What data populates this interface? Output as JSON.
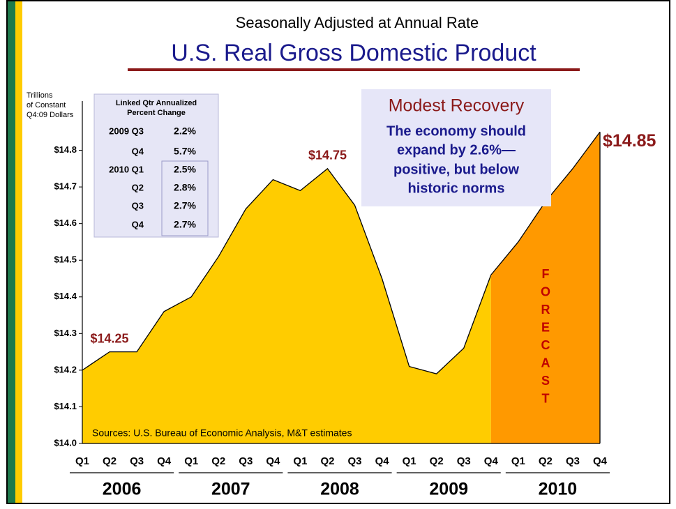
{
  "chart_data": {
    "type": "area",
    "subtitle": "Seasonally Adjusted at Annual Rate",
    "title": "U.S. Real Gross Domestic Product",
    "y_label": [
      "Trillions",
      "of Constant",
      "Q4:09 Dollars"
    ],
    "categories": [
      "Q1",
      "Q2",
      "Q3",
      "Q4",
      "Q1",
      "Q2",
      "Q3",
      "Q4",
      "Q1",
      "Q2",
      "Q3",
      "Q4",
      "Q1",
      "Q2",
      "Q3",
      "Q4",
      "Q1",
      "Q2",
      "Q3",
      "Q4"
    ],
    "years": [
      "2006",
      "2007",
      "2008",
      "2009",
      "2010"
    ],
    "series": [
      {
        "color": "#FFCC00",
        "values": [
          14.2,
          14.25,
          14.25,
          14.36,
          14.4,
          14.51,
          14.64,
          14.72,
          14.69,
          14.75,
          14.65,
          14.45,
          14.21,
          14.19,
          14.26,
          14.46,
          null,
          null,
          null,
          null
        ],
        "value_labels": [
          null,
          "$14.25",
          null,
          null,
          null,
          null,
          null,
          null,
          null,
          "$14.75",
          null,
          null,
          null,
          null,
          null,
          null,
          null,
          null,
          null,
          null
        ]
      },
      {
        "color": "#FF9900",
        "values": [
          null,
          null,
          null,
          null,
          null,
          null,
          null,
          null,
          null,
          null,
          null,
          null,
          null,
          null,
          null,
          14.46,
          14.55,
          14.66,
          14.75,
          14.85
        ],
        "value_labels": [
          null,
          null,
          null,
          null,
          null,
          null,
          null,
          null,
          null,
          null,
          null,
          null,
          null,
          null,
          null,
          null,
          null,
          null,
          null,
          "$14.85"
        ]
      }
    ],
    "ylim": [
      14.0,
      14.9
    ],
    "yticks": [
      {
        "value": 14.0,
        "label": "$14.0"
      },
      {
        "value": 14.1,
        "label": "$14.1"
      },
      {
        "value": 14.2,
        "label": "$14.2"
      },
      {
        "value": 14.3,
        "label": "$14.3"
      },
      {
        "value": 14.4,
        "label": "$14.4"
      },
      {
        "value": 14.5,
        "label": "$14.5"
      },
      {
        "value": 14.6,
        "label": "$14.6"
      },
      {
        "value": 14.7,
        "label": "$14.7"
      },
      {
        "value": 14.8,
        "label": "$14.8"
      }
    ],
    "forecast_label": "FORECAST",
    "source": "Sources:  U.S. Bureau of Economic Analysis, M&T estimates",
    "inset_table": {
      "title": [
        "Linked Qtr Annualized",
        "Percent Change"
      ],
      "rows": [
        [
          "2009 Q3",
          "2.2%"
        ],
        [
          "Q4",
          "5.7%"
        ],
        [
          "2010 Q1",
          "2.5%"
        ],
        [
          "Q2",
          "2.8%"
        ],
        [
          "Q3",
          "2.7%"
        ],
        [
          "Q4",
          "2.7%"
        ]
      ]
    },
    "callout": {
      "title": "Modest Recovery",
      "lines": [
        "The economy should",
        "expand by 2.6%—",
        "positive, but below",
        "historic norms"
      ]
    }
  }
}
